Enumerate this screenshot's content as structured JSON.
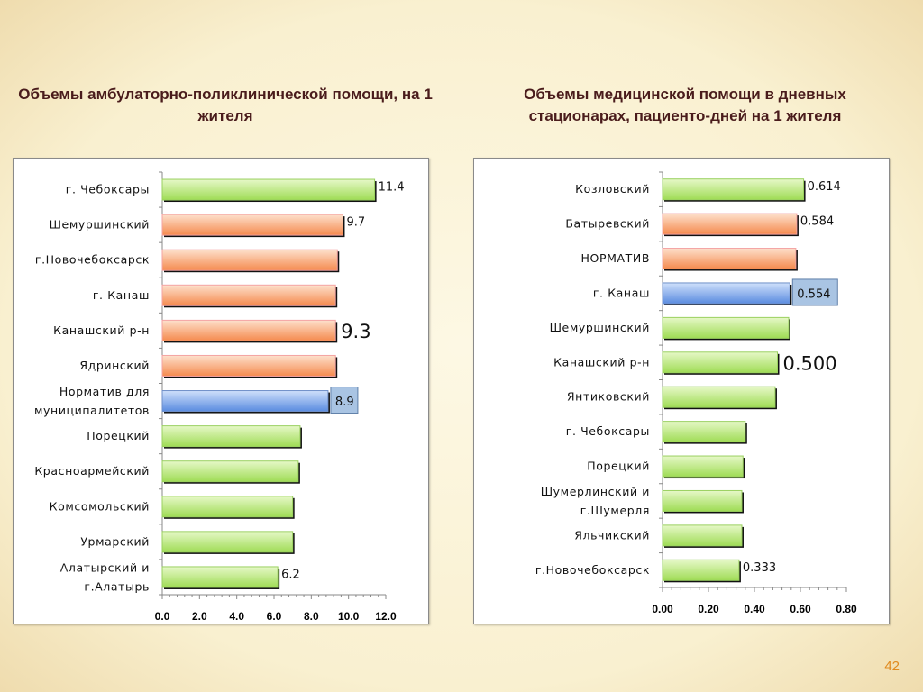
{
  "slide": {
    "page_number": "42"
  },
  "colors": {
    "green": "#a6df63",
    "orange": "#f7925a",
    "blue": "#6e9ae6",
    "title": "#4a1c1c",
    "page_number": "#e08a1e"
  },
  "chart_data": [
    {
      "type": "bar",
      "orientation": "horizontal",
      "title": "Объемы амбулаторно-поликлинической помощи, на 1 жителя",
      "categories": [
        "г. Чебоксары",
        "Шемуршинский",
        "г.Новочебоксарск",
        "г. Канаш",
        "Канашский р-н",
        "Ядринский",
        "Норматив для\nмуниципалитетов",
        "Порецкий",
        "Красноармейский",
        "Комсомольский",
        "Урмарский",
        "Алатырский и\nг.Алатырь"
      ],
      "values": [
        11.4,
        9.7,
        9.4,
        9.3,
        9.3,
        9.3,
        8.9,
        7.4,
        7.3,
        7.0,
        7.0,
        6.2
      ],
      "bar_colors": [
        "green",
        "orange",
        "orange",
        "orange",
        "orange",
        "orange",
        "blue",
        "green",
        "green",
        "green",
        "green",
        "green"
      ],
      "data_labels": [
        "11.4",
        "9.7",
        null,
        null,
        "9.3",
        null,
        "8.9",
        null,
        null,
        null,
        null,
        "6.2"
      ],
      "label_emphasis": [
        "normal",
        "normal",
        null,
        null,
        "large",
        null,
        "boxed",
        null,
        null,
        null,
        null,
        "normal"
      ],
      "xlim": [
        0,
        12
      ],
      "xticks": [
        "0.0",
        "2.0",
        "4.0",
        "6.0",
        "8.0",
        "10.0",
        "12.0"
      ],
      "xlabel": "",
      "ylabel": "",
      "grid": false,
      "legend": "none"
    },
    {
      "type": "bar",
      "orientation": "horizontal",
      "title": "Объемы медицинской помощи в дневных стационарах, пациенто-дней на 1 жителя",
      "categories": [
        "Козловский",
        "Батыревский",
        "НОРМАТИВ",
        "г. Канаш",
        "Шемуршинский",
        "Канашский р-н",
        "Янтиковский",
        "г. Чебоксары",
        "Порецкий",
        "Шумерлинский и\nг.Шумерля",
        "Яльчикский",
        "г.Новочебоксарск"
      ],
      "values": [
        0.614,
        0.584,
        0.58,
        0.554,
        0.549,
        0.5,
        0.49,
        0.36,
        0.35,
        0.345,
        0.345,
        0.333
      ],
      "bar_colors": [
        "green",
        "orange",
        "orange",
        "blue",
        "green",
        "green",
        "green",
        "green",
        "green",
        "green",
        "green",
        "green"
      ],
      "data_labels": [
        "0.614",
        "0.584",
        null,
        "0.554",
        null,
        "0.500",
        null,
        null,
        null,
        null,
        null,
        "0.333"
      ],
      "label_emphasis": [
        "normal",
        "normal",
        null,
        "boxed",
        null,
        "large",
        null,
        null,
        null,
        null,
        null,
        "normal"
      ],
      "xlim": [
        0,
        0.8
      ],
      "xticks": [
        "0.00",
        "0.20",
        "0.40",
        "0.60",
        "0.80"
      ],
      "xlabel": "",
      "ylabel": "",
      "grid": false,
      "legend": "none"
    }
  ]
}
